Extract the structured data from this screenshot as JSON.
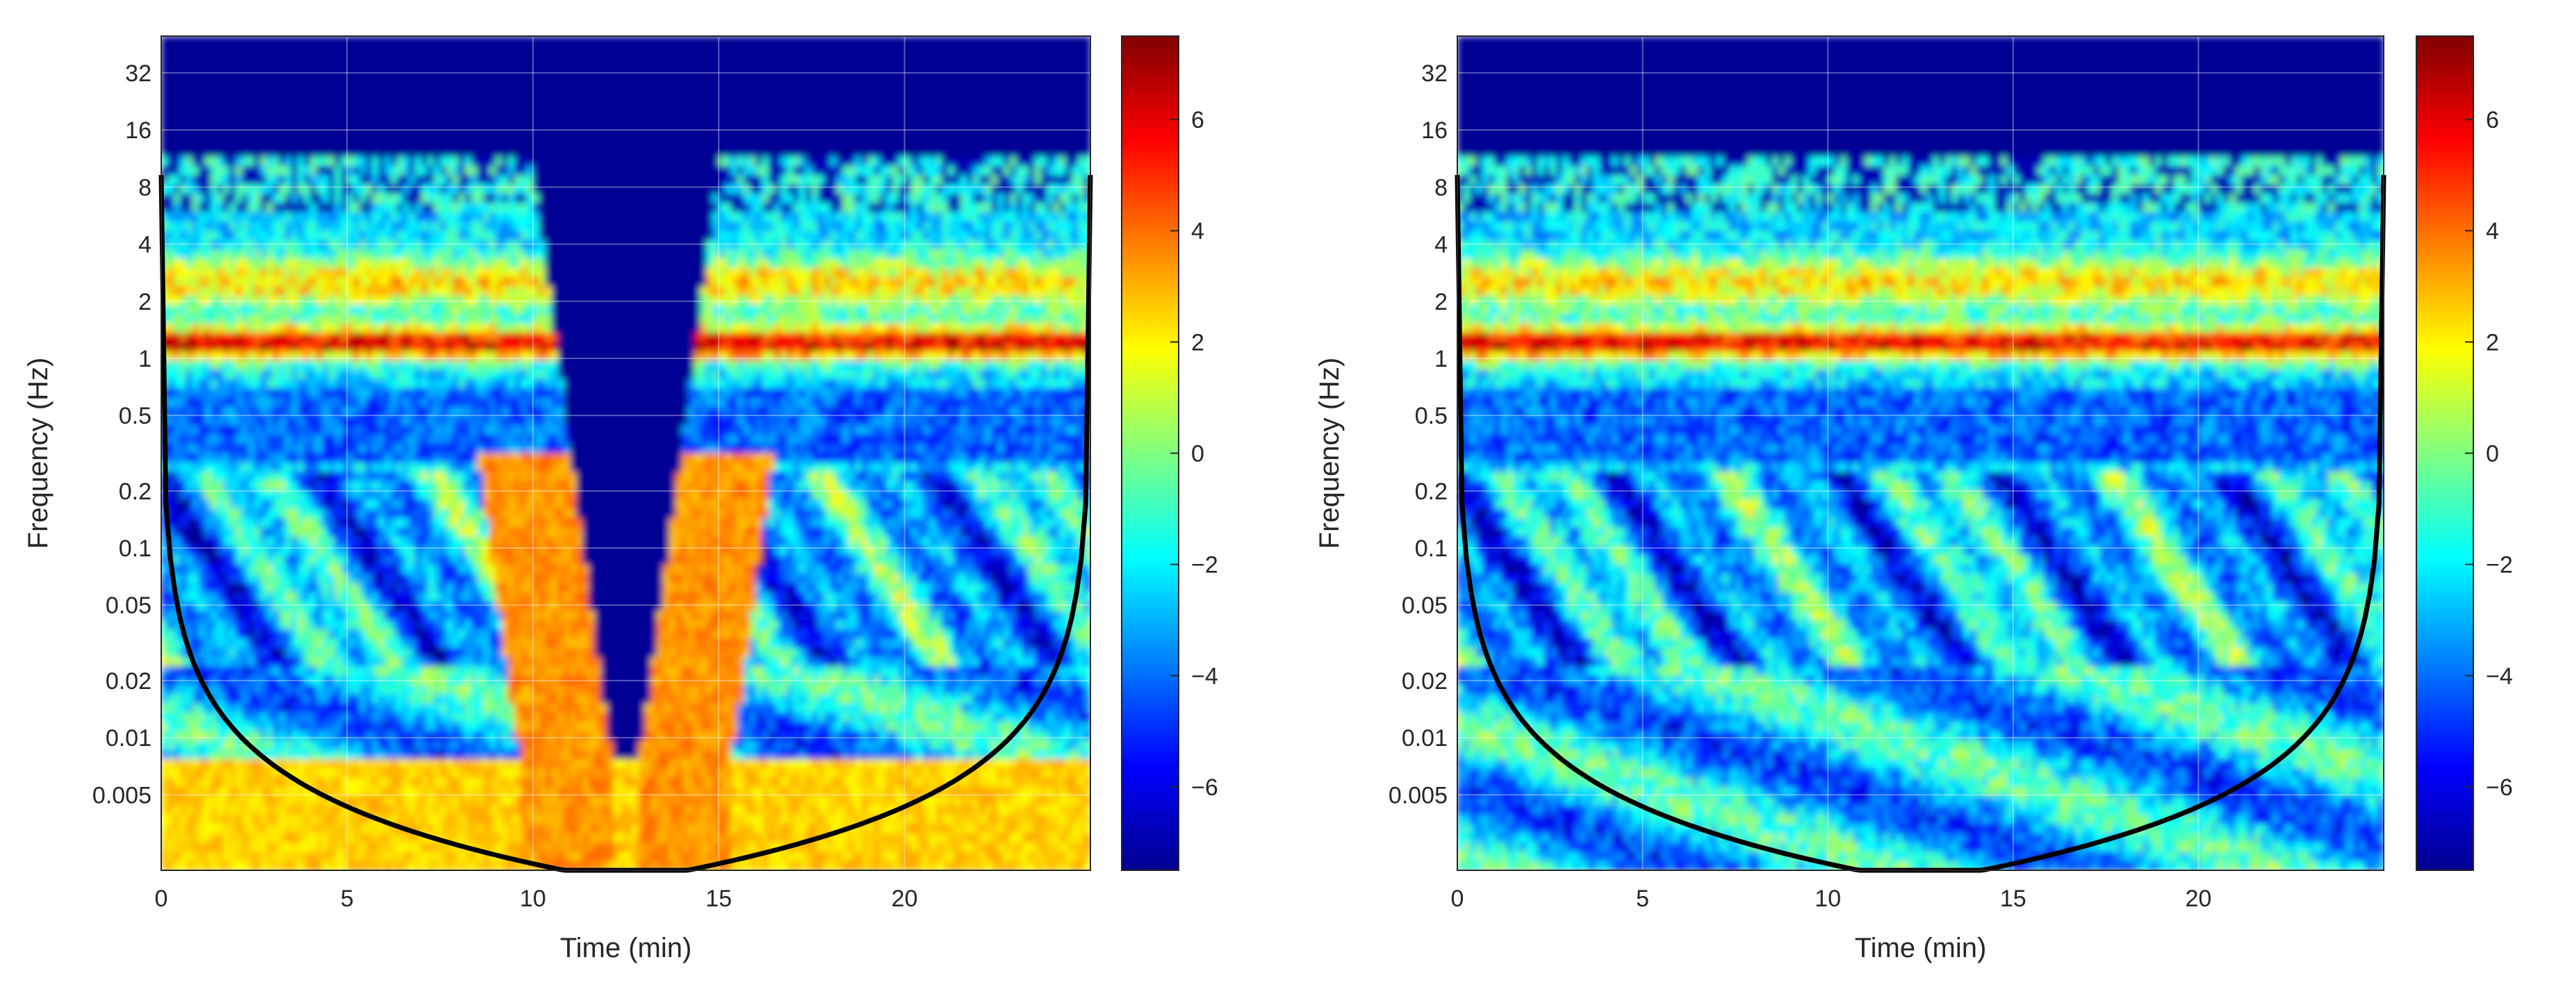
{
  "figure": {
    "description_panels": 2
  },
  "chart_data": [
    {
      "type": "heatmap",
      "title": "",
      "xlabel": "Time (min)",
      "ylabel": "Frequency (Hz)",
      "xlim": [
        0,
        25
      ],
      "ylim_hz": [
        0.002,
        50
      ],
      "y_scale": "log",
      "x_ticks": [
        0,
        5,
        10,
        15,
        20
      ],
      "x_tick_labels": [
        "0",
        "5",
        "10",
        "15",
        "20"
      ],
      "y_ticks": [
        0.005,
        0.01,
        0.02,
        0.05,
        0.1,
        0.2,
        0.5,
        1,
        2,
        4,
        8,
        16,
        32
      ],
      "y_tick_labels": [
        "0.005",
        "0.01",
        "0.02",
        "0.05",
        "0.1",
        "0.2",
        "0.5",
        "1",
        "2",
        "4",
        "8",
        "16",
        "32"
      ],
      "colorbar": {
        "colormap": "jet",
        "range": [
          -7.5,
          7.5
        ],
        "ticks": [
          -6,
          -4,
          -2,
          0,
          2,
          4,
          6
        ],
        "tick_labels": [
          "−6",
          "−4",
          "−2",
          "0",
          "2",
          "4",
          "6"
        ]
      },
      "grid": true,
      "features": {
        "band_peak_hz": 1.2,
        "secondary_band_hz": 2.5,
        "low_power_gap_min": [
          10,
          15
        ],
        "cone_of_influence": true
      }
    },
    {
      "type": "heatmap",
      "title": "",
      "xlabel": "Time (min)",
      "ylabel": "Frequency (Hz)",
      "xlim": [
        0,
        25
      ],
      "ylim_hz": [
        0.002,
        50
      ],
      "y_scale": "log",
      "x_ticks": [
        0,
        5,
        10,
        15,
        20
      ],
      "x_tick_labels": [
        "0",
        "5",
        "10",
        "15",
        "20"
      ],
      "y_ticks": [
        0.005,
        0.01,
        0.02,
        0.05,
        0.1,
        0.2,
        0.5,
        1,
        2,
        4,
        8,
        16,
        32
      ],
      "y_tick_labels": [
        "0.005",
        "0.01",
        "0.02",
        "0.05",
        "0.1",
        "0.2",
        "0.5",
        "1",
        "2",
        "4",
        "8",
        "16",
        "32"
      ],
      "colorbar": {
        "colormap": "jet",
        "range": [
          -7.5,
          7.5
        ],
        "ticks": [
          -6,
          -4,
          -2,
          0,
          2,
          4,
          6
        ],
        "tick_labels": [
          "−6",
          "−4",
          "−2",
          "0",
          "2",
          "4",
          "6"
        ]
      },
      "grid": true,
      "features": {
        "band_peak_hz": 1.2,
        "secondary_band_hz": 2.5,
        "low_power_gap_min": null,
        "cone_of_influence": true
      }
    }
  ]
}
